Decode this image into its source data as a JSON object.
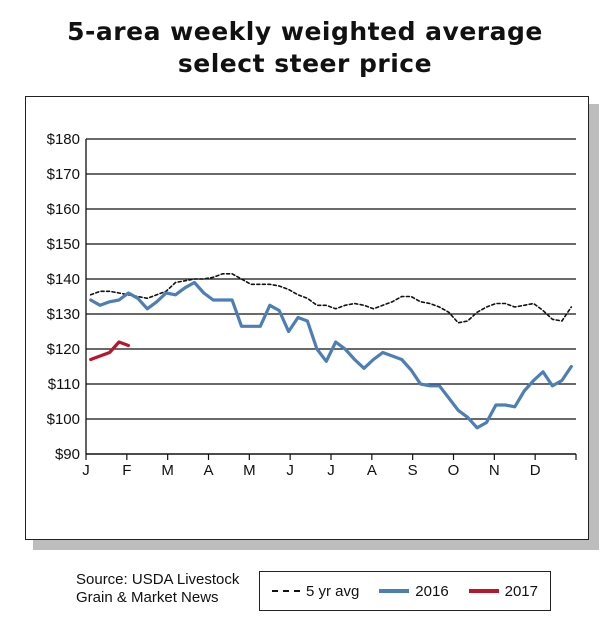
{
  "chart_data": {
    "type": "line",
    "title": "5-area weekly weighted average select steer price",
    "title_lines": [
      "5-area weekly weighted average",
      "select steer price"
    ],
    "y_ticks": [
      "$180",
      "$170",
      "$160",
      "$150",
      "$140",
      "$130",
      "$120",
      "$110",
      "$100",
      "$90"
    ],
    "ylim": [
      90,
      180
    ],
    "x_ticks": [
      "J",
      "F",
      "M",
      "A",
      "M",
      "J",
      "J",
      "A",
      "S",
      "O",
      "N",
      "D"
    ],
    "weeks_per_year": 52,
    "grid": true,
    "legend_position": "bottom-right",
    "colors": {
      "avg": "#111111",
      "y2016": "#4d7fb5",
      "y2017": "#b8162c"
    },
    "series": [
      {
        "name": "5 yr avg",
        "style": "dotted",
        "values": [
          135.5,
          136.5,
          136.5,
          136,
          135.5,
          135,
          134.5,
          135.5,
          136.5,
          139,
          139.5,
          140,
          140,
          140.5,
          141.5,
          141.5,
          140,
          138.5,
          138.5,
          138.5,
          138,
          137,
          135.5,
          134.5,
          132.5,
          132.5,
          131.5,
          132.5,
          133,
          132.5,
          131.5,
          132.5,
          133.5,
          135,
          135,
          133.5,
          133,
          132,
          130.5,
          127.5,
          128,
          130.5,
          132,
          133,
          133,
          132,
          132.5,
          133,
          131,
          128.5,
          128,
          132
        ]
      },
      {
        "name": "2016",
        "style": "solid",
        "values": [
          134,
          132.5,
          133.5,
          134,
          136,
          134.5,
          131.5,
          133.5,
          136,
          135.5,
          137.5,
          139,
          136,
          134,
          134,
          134,
          126.5,
          126.5,
          126.5,
          132.5,
          131,
          125,
          129,
          128,
          120,
          116.5,
          122,
          120,
          117,
          114.5,
          117,
          119,
          118,
          117,
          114,
          110,
          109.5,
          109.5,
          106,
          102.5,
          100.5,
          97.5,
          99,
          104,
          104,
          103.5,
          108,
          111,
          113.5,
          109.5,
          111,
          115
        ]
      },
      {
        "name": "2017",
        "style": "solid",
        "values": [
          117,
          118,
          119,
          122,
          121
        ]
      }
    ]
  },
  "source": {
    "line1": "Source: USDA Livestock",
    "line2": "Grain & Market News"
  },
  "legend": {
    "avg": "5 yr avg",
    "y2016": "2016",
    "y2017": "2017"
  }
}
